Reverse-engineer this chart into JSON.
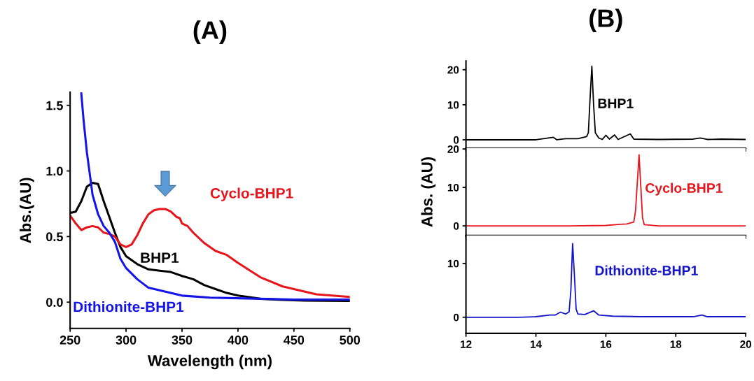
{
  "chart_data": [
    {
      "type": "line",
      "title": "(A)",
      "xlabel": "Wavelength (nm)",
      "ylabel": "Abs.(AU)",
      "xlim": [
        250,
        500
      ],
      "ylim": [
        -0.2,
        1.6
      ],
      "xticks": [
        250,
        300,
        350,
        400,
        450,
        500
      ],
      "yticks": [
        {
          "value": 0,
          "label": "0.0"
        },
        {
          "value": 0.5,
          "label": "0.5"
        },
        {
          "value": 1,
          "label": "1.0"
        },
        {
          "value": 1.5,
          "label": "1.5"
        }
      ],
      "grid": false,
      "legend": false,
      "marker": "none",
      "line_style": "solid",
      "series": [
        {
          "name": "BHP1",
          "color": "#000000",
          "x": [
            250,
            255,
            260,
            265,
            270,
            275,
            280,
            285,
            290,
            295,
            300,
            310,
            320,
            330,
            340,
            350,
            360,
            370,
            380,
            390,
            400,
            420,
            440,
            460,
            500
          ],
          "values": [
            0.68,
            0.69,
            0.77,
            0.88,
            0.91,
            0.9,
            0.77,
            0.65,
            0.53,
            0.42,
            0.35,
            0.29,
            0.25,
            0.24,
            0.23,
            0.2,
            0.175,
            0.13,
            0.1,
            0.07,
            0.05,
            0.026,
            0.018,
            0.012,
            0.01
          ]
        },
        {
          "name": "Cyclo-BHP1",
          "color": "#e8141c",
          "x": [
            250,
            255,
            260,
            265,
            270,
            275,
            280,
            285,
            290,
            295,
            300,
            305,
            310,
            315,
            320,
            325,
            330,
            335,
            340,
            345,
            348,
            350,
            355,
            360,
            370,
            380,
            390,
            400,
            420,
            440,
            460,
            470,
            500
          ],
          "values": [
            0.66,
            0.6,
            0.55,
            0.57,
            0.58,
            0.57,
            0.53,
            0.52,
            0.5,
            0.44,
            0.42,
            0.44,
            0.51,
            0.6,
            0.67,
            0.7,
            0.71,
            0.71,
            0.69,
            0.65,
            0.64,
            0.6,
            0.58,
            0.53,
            0.45,
            0.39,
            0.36,
            0.3,
            0.19,
            0.12,
            0.08,
            0.06,
            0.04
          ]
        },
        {
          "name": "Dithionite-BHP1",
          "color": "#1414e6",
          "x": [
            260,
            262,
            265,
            268,
            270,
            275,
            280,
            285,
            290,
            295,
            300,
            310,
            320,
            330,
            340,
            350,
            375,
            400,
            450,
            500
          ],
          "values": [
            1.59,
            1.39,
            1.14,
            0.95,
            0.82,
            0.67,
            0.58,
            0.53,
            0.46,
            0.33,
            0.26,
            0.175,
            0.11,
            0.09,
            0.07,
            0.05,
            0.035,
            0.03,
            0.02,
            0.02
          ]
        }
      ]
    },
    {
      "type": "line",
      "title": "(B)",
      "xlim": [
        12,
        20
      ],
      "ylim": [
        -2.4,
        22.5
      ],
      "xticks": [
        12,
        14,
        16,
        18,
        20
      ],
      "yticks": [
        0,
        10,
        20
      ],
      "tick_labels": "y",
      "grid": false,
      "legend": false,
      "marker": "none",
      "line_style": "solid",
      "series": [
        {
          "name": "BHP1",
          "color": "#000000",
          "x": [
            12,
            14,
            14.5,
            14.6,
            14.85,
            15.2,
            15.45,
            15.5,
            15.55,
            15.6,
            15.65,
            15.7,
            15.8,
            15.9,
            16.0,
            16.1,
            16.25,
            16.35,
            16.7,
            16.8,
            17.5,
            18.5,
            18.7,
            18.9,
            19.3,
            20
          ],
          "values": [
            0,
            0,
            0.7,
            0,
            0.3,
            0.3,
            0.9,
            2,
            12,
            21,
            10,
            2,
            0.5,
            0.1,
            1.3,
            0.2,
            1.4,
            0.1,
            1.7,
            0.2,
            0.1,
            0.2,
            0.5,
            0.1,
            0.2,
            0.1
          ]
        }
      ]
    },
    {
      "type": "line",
      "ylabel": "Abs. (AU)",
      "xlim": [
        12,
        20
      ],
      "ylim": [
        -2.5,
        20.2
      ],
      "xticks": [
        12,
        14,
        16,
        18,
        20
      ],
      "yticks": [
        0,
        10,
        20
      ],
      "tick_labels": "y",
      "grid": false,
      "legend": false,
      "marker": "none",
      "line_style": "solid",
      "series": [
        {
          "name": "Cyclo-BHP1",
          "color": "#e8141c",
          "x": [
            12,
            15,
            16,
            16.4,
            16.6,
            16.8,
            16.85,
            16.95,
            17.05,
            17.1,
            17.5,
            20
          ],
          "values": [
            0,
            0,
            0.1,
            0.4,
            0.5,
            1,
            4,
            18.5,
            2,
            0.3,
            0,
            0
          ]
        }
      ]
    },
    {
      "type": "line",
      "xlim": [
        12,
        20
      ],
      "ylim": [
        -3,
        15.2
      ],
      "xticks": [
        12,
        14,
        16,
        18,
        20
      ],
      "yticks": [
        0,
        10
      ],
      "grid": false,
      "legend": false,
      "marker": "none",
      "line_style": "solid",
      "series": [
        {
          "name": "Dithionite-BHP1",
          "color": "#1414c8",
          "x": [
            12,
            13.5,
            14,
            14.4,
            14.55,
            14.7,
            14.85,
            14.95,
            15,
            15.05,
            15.1,
            15.15,
            15.2,
            15.4,
            15.65,
            15.8,
            16.2,
            17,
            18.5,
            18.75,
            18.9,
            20
          ],
          "values": [
            0,
            0,
            0.1,
            0.4,
            0.4,
            0.95,
            0.6,
            1,
            5,
            13.7,
            8,
            1.5,
            0.6,
            0.5,
            1.2,
            0.4,
            0.2,
            0.1,
            0.1,
            0.4,
            0.1,
            0.1
          ]
        }
      ]
    }
  ]
}
